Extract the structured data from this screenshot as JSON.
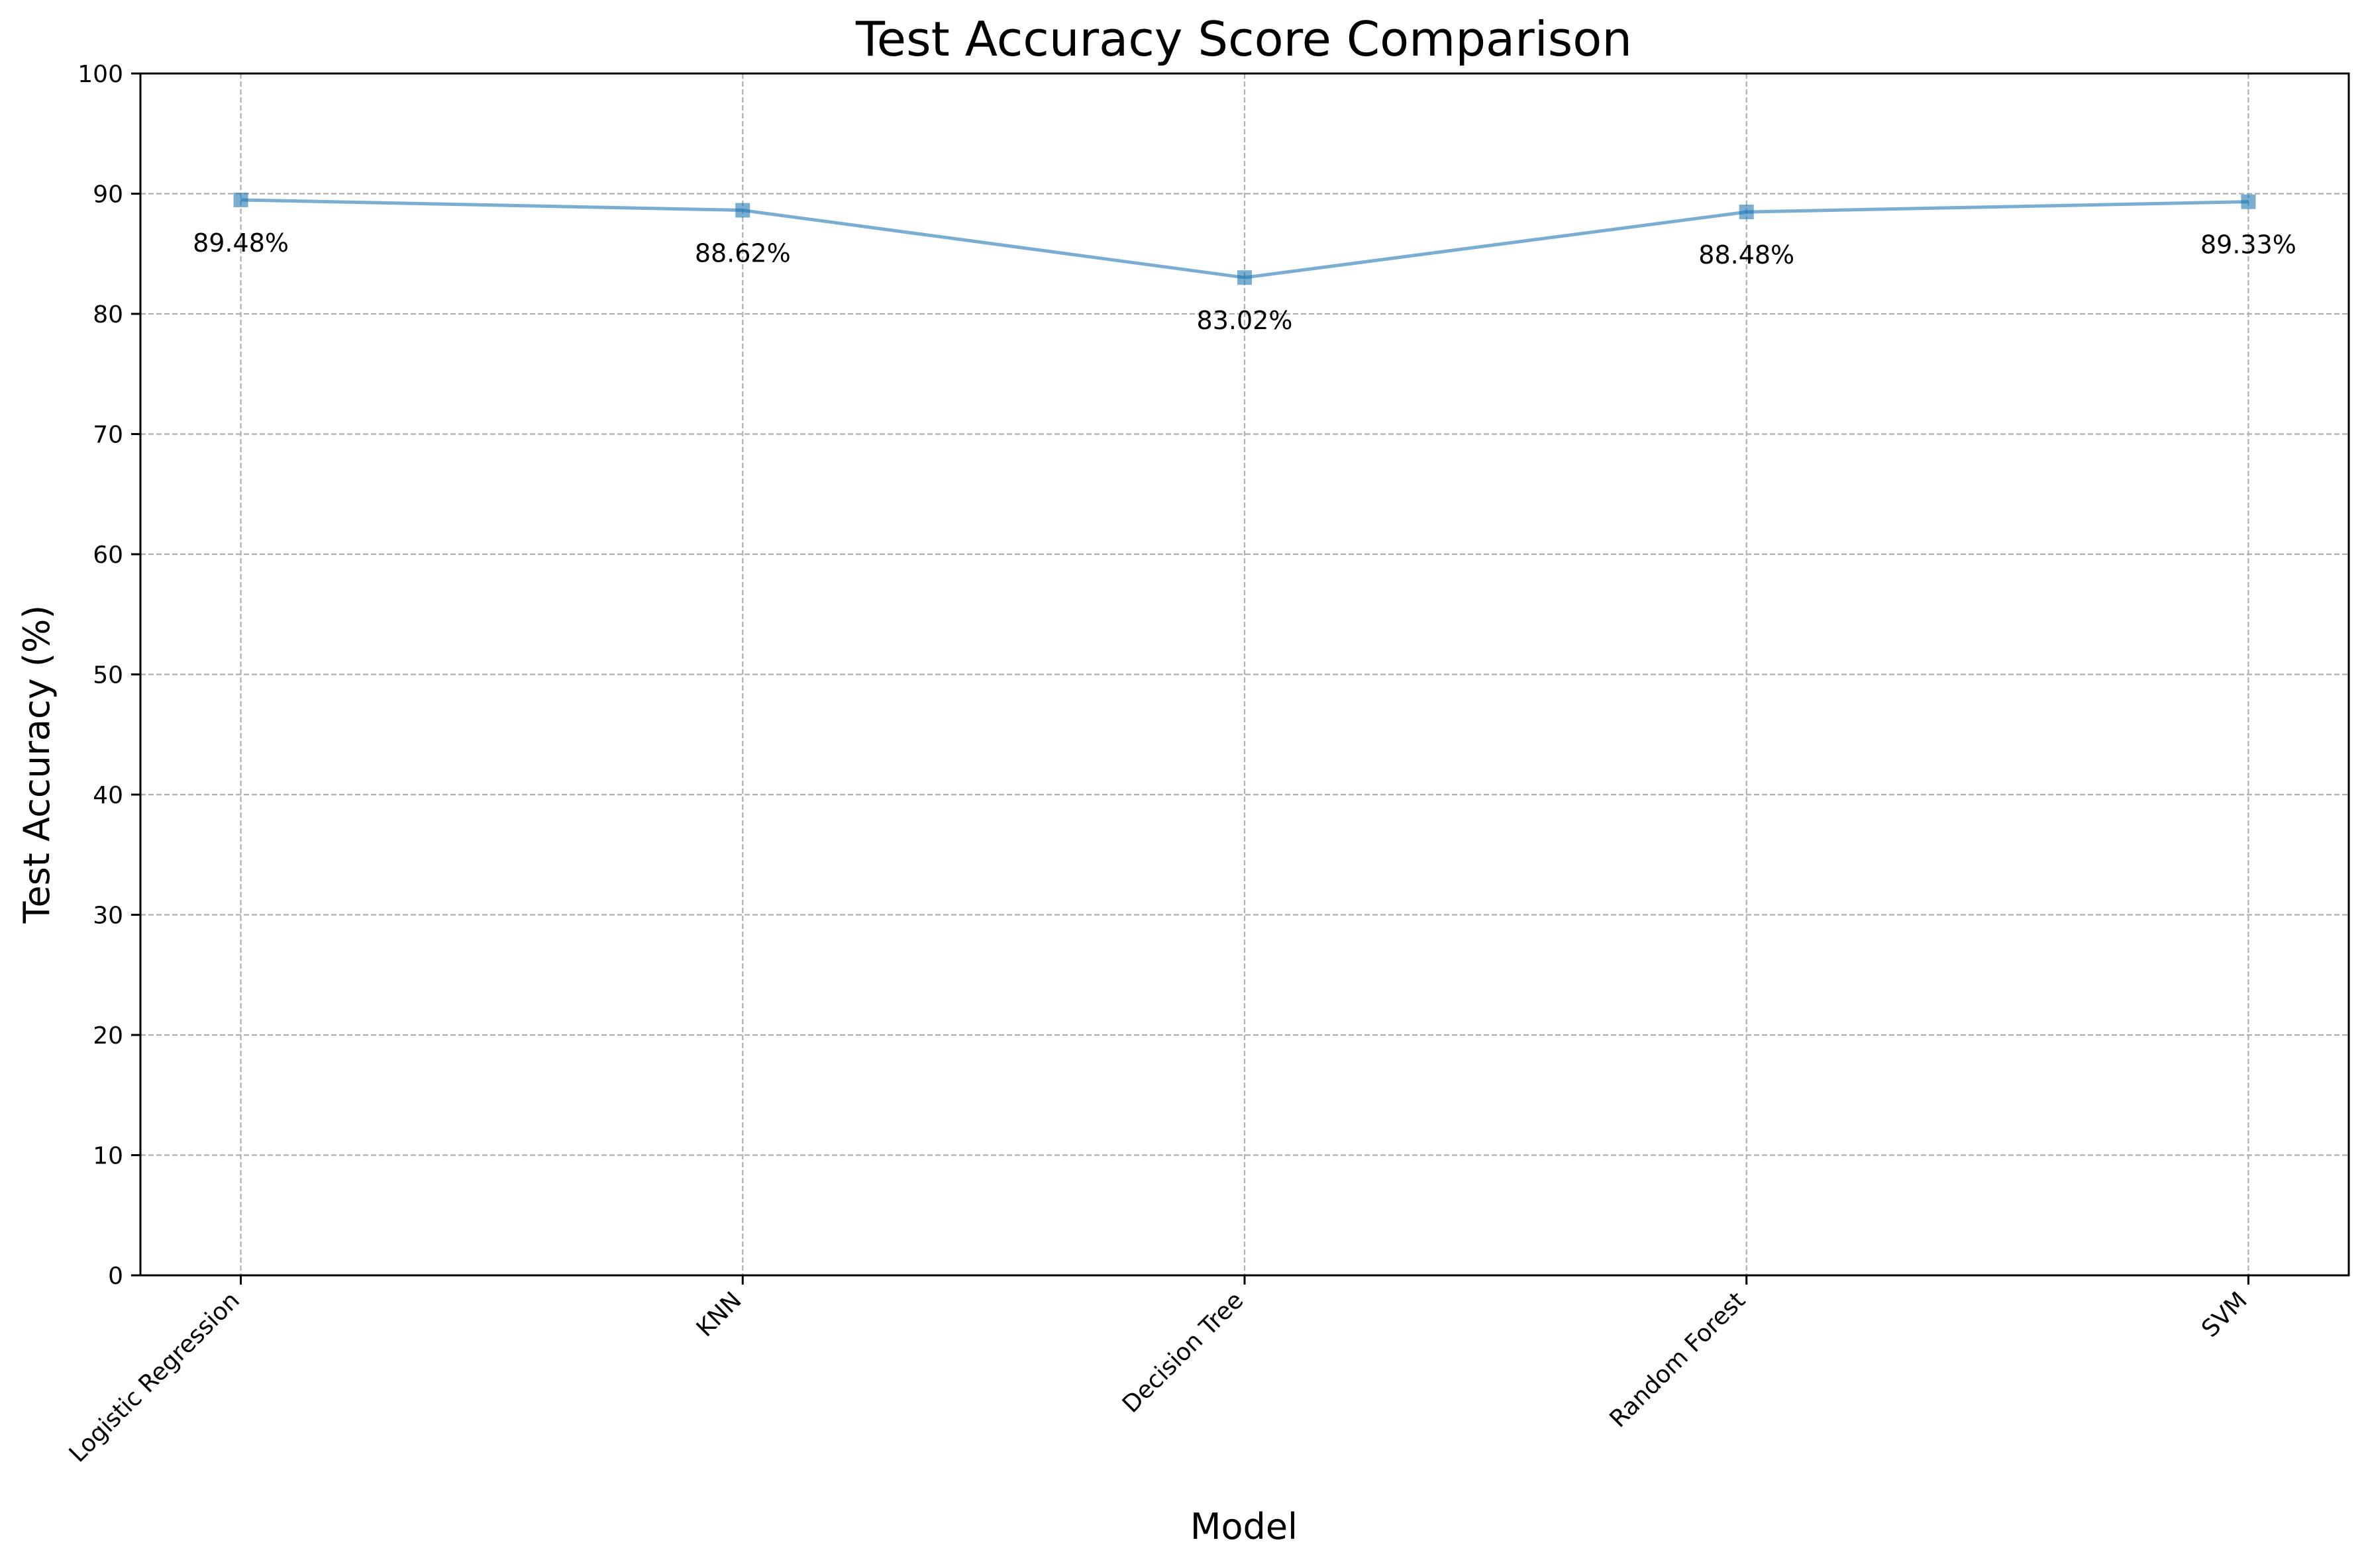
{
  "chart_data": {
    "type": "line",
    "title": "Test Accuracy Score Comparison",
    "xlabel": "Model",
    "ylabel": "Test Accuracy (%)",
    "categories": [
      "Logistic Regression",
      "KNN",
      "Decision Tree",
      "Random Forest",
      "SVM"
    ],
    "series": [
      {
        "values": [
          89.48,
          88.62,
          83.02,
          88.48,
          89.33
        ],
        "labels": [
          "89.48%",
          "88.62%",
          "83.02%",
          "88.48%",
          "89.33%"
        ],
        "color": "#1f77b4",
        "marker": "square"
      }
    ],
    "ylim": [
      0,
      100
    ],
    "yticks": [
      0,
      10,
      20,
      30,
      40,
      50,
      60,
      70,
      80,
      90,
      100
    ],
    "ytick_labels": [
      "0",
      "10",
      "20",
      "30",
      "40",
      "50",
      "60",
      "70",
      "80",
      "90",
      "100"
    ],
    "grid": true,
    "legend": "none"
  }
}
